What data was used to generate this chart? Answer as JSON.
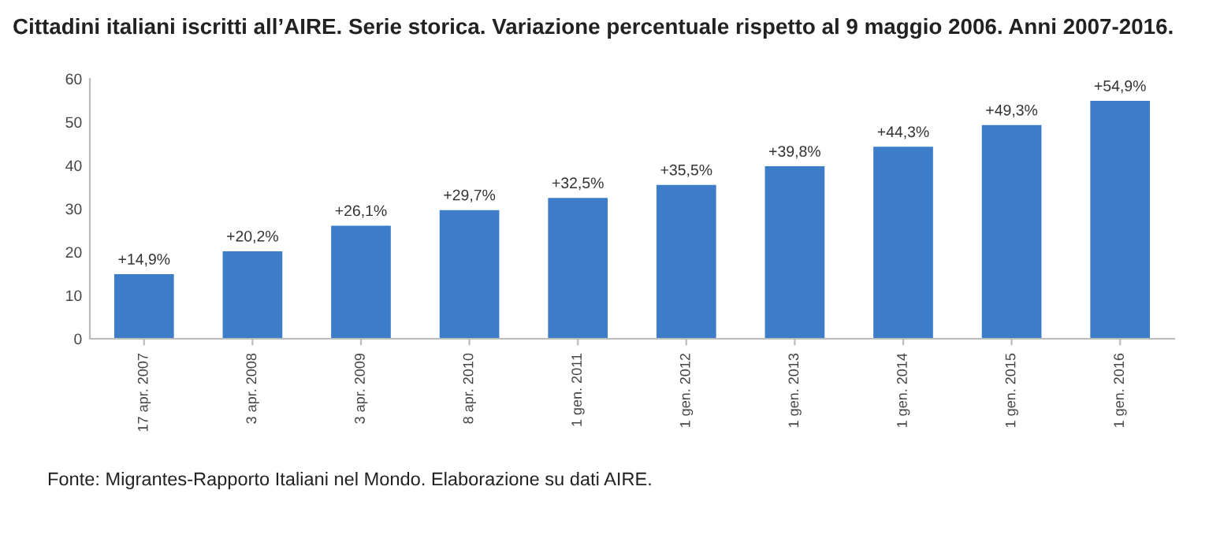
{
  "chart_data": {
    "type": "bar",
    "title": "Cittadini italiani iscritti all’AIRE. Serie storica. Variazione percentuale rispetto al 9 maggio 2006. Anni 2007-2016.",
    "categories": [
      "17 apr. 2007",
      "3 apr. 2008",
      "3 apr. 2009",
      "8 apr. 2010",
      "1 gen. 2011",
      "1 gen. 2012",
      "1 gen. 2013",
      "1 gen. 2014",
      "1 gen. 2015",
      "1 gen. 2016"
    ],
    "values": [
      14.9,
      20.2,
      26.1,
      29.7,
      32.5,
      35.5,
      39.8,
      44.3,
      49.3,
      54.9
    ],
    "value_labels": [
      "+14,9%",
      "+20,2%",
      "+26,1%",
      "+29,7%",
      "+32,5%",
      "+35,5%",
      "+39,8%",
      "+44,3%",
      "+49,3%",
      "+54,9%"
    ],
    "color": "#3d7cc9",
    "ylim": [
      0,
      60
    ],
    "yticks": [
      0,
      10,
      20,
      30,
      40,
      50,
      60
    ],
    "grid": false,
    "legend": false,
    "annotations": [
      "Fonte: Migrantes-Rapporto Italiani nel Mondo. Elaborazione su dati AIRE."
    ]
  }
}
